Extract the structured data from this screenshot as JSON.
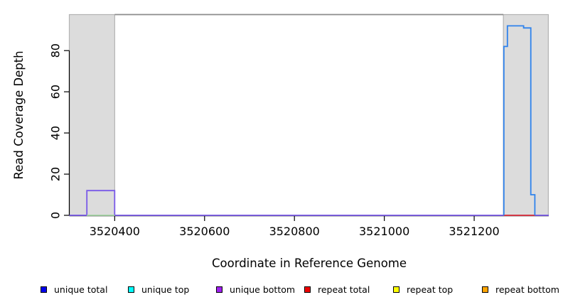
{
  "chart_data": {
    "type": "line",
    "title": "",
    "xlabel": "Coordinate in Reference Genome",
    "ylabel": "Read Coverage Depth",
    "x_ticks": [
      3520400,
      3520600,
      3520800,
      3521000,
      3521200
    ],
    "y_ticks": [
      0,
      20,
      40,
      60,
      80
    ],
    "xlim": [
      3520299,
      3521366
    ],
    "ylim": [
      0,
      97.5
    ],
    "grid": false,
    "legend_position": "bottom",
    "shaded_regions": [
      {
        "name": "left-gray-region",
        "x0": 3520299,
        "x1": 3520400,
        "fill": "#DCDCDC",
        "border": "#B3B3B3"
      },
      {
        "name": "right-gray-region",
        "x0": 3521265,
        "x1": 3521365,
        "fill": "#DCDCDC",
        "border": "#B3B3B3"
      }
    ],
    "top_boundary_line": {
      "y_value": 97.5,
      "x0": 3520400,
      "x1": 3521265,
      "color": "#8C8C8C"
    },
    "series": [
      {
        "name": "unique-coverage-baseline-and-left-peak",
        "color": "#7959E8",
        "step_points": [
          [
            3520299,
            0
          ],
          [
            3520338,
            0
          ],
          [
            3520338,
            12
          ],
          [
            3520400,
            12
          ],
          [
            3520400,
            0
          ],
          [
            3521366,
            0
          ]
        ]
      },
      {
        "name": "pale-green-baseline-segment",
        "color": "#A5D6A5",
        "step_points": [
          [
            3520338,
            0
          ],
          [
            3520400,
            0
          ]
        ]
      },
      {
        "name": "repeat-total-baseline-segment",
        "color": "#E03434",
        "step_points": [
          [
            3521266,
            0
          ],
          [
            3521335,
            0
          ]
        ]
      },
      {
        "name": "right-peak-unique-top-overlap",
        "color": "#2E82EC",
        "step_points": [
          [
            3521266,
            0
          ],
          [
            3521266,
            82
          ],
          [
            3521274,
            82
          ],
          [
            3521274,
            92
          ],
          [
            3521310,
            92
          ],
          [
            3521310,
            91
          ],
          [
            3521326,
            91
          ],
          [
            3521326,
            10
          ],
          [
            3521335,
            10
          ],
          [
            3521335,
            0
          ]
        ]
      }
    ],
    "legend": [
      {
        "label": "unique total",
        "color": "#0000EE"
      },
      {
        "label": "unique top",
        "color": "#00FFFF"
      },
      {
        "label": "unique bottom",
        "color": "#A020F0"
      },
      {
        "label": "repeat total",
        "color": "#EE0000"
      },
      {
        "label": "repeat top",
        "color": "#FFFF00"
      },
      {
        "label": "repeat bottom",
        "color": "#FFA500"
      }
    ]
  }
}
